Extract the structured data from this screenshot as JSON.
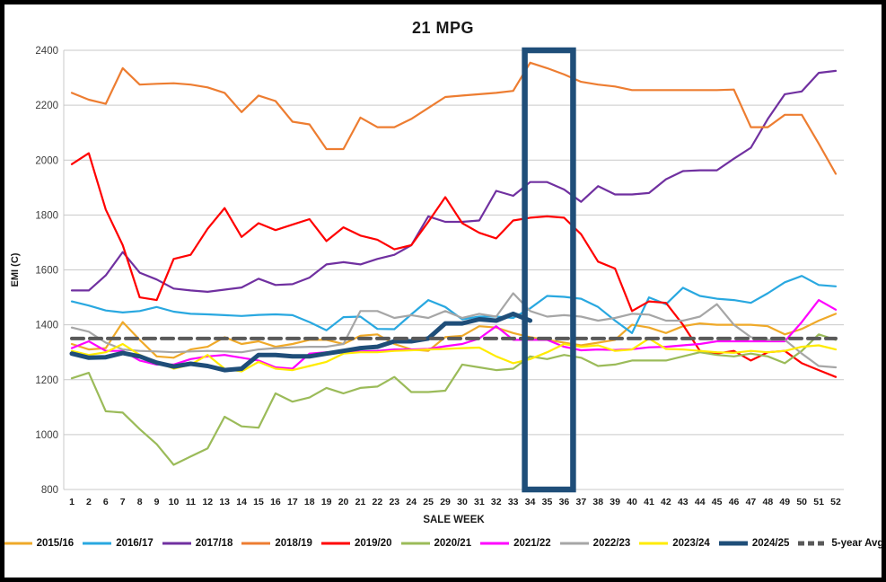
{
  "title": "21 MPG",
  "chart_data": {
    "type": "line",
    "title": "21 MPG",
    "xlabel": "SALE WEEK",
    "ylabel": "EMI (C)",
    "ylim": [
      800,
      2400
    ],
    "y_ticks": [
      800,
      1000,
      1200,
      1400,
      1600,
      1800,
      2000,
      2200,
      2400
    ],
    "grid": true,
    "legend_position": "bottom",
    "highlight_box": {
      "from_week": "34",
      "to_week": "36",
      "color": "#1F4E79"
    },
    "categories": [
      "1",
      "2",
      "6",
      "7",
      "8",
      "9",
      "10",
      "11",
      "12",
      "13",
      "14",
      "15",
      "16",
      "17",
      "18",
      "19",
      "20",
      "21",
      "22",
      "23",
      "24",
      "25",
      "29",
      "30",
      "31",
      "32",
      "33",
      "34",
      "35",
      "36",
      "37",
      "38",
      "39",
      "40",
      "41",
      "42",
      "43",
      "44",
      "45",
      "46",
      "47",
      "48",
      "49",
      "50",
      "51",
      "52"
    ],
    "series": [
      {
        "name": "2015/16",
        "color": "#EFA929",
        "width": 2.2,
        "values": [
          1330,
          1310,
          1315,
          1410,
          1345,
          1285,
          1280,
          1310,
          1320,
          1355,
          1330,
          1340,
          1320,
          1330,
          1345,
          1345,
          1330,
          1360,
          1365,
          1330,
          1310,
          1305,
          1355,
          1360,
          1395,
          1390,
          1370,
          1355,
          1345,
          1335,
          1325,
          1335,
          1345,
          1400,
          1390,
          1370,
          1395,
          1405,
          1400,
          1400,
          1400,
          1395,
          1365,
          1385,
          1415,
          1440
        ]
      },
      {
        "name": "2016/17",
        "color": "#29A8E0",
        "width": 2.2,
        "values": [
          1485,
          1470,
          1452,
          1445,
          1450,
          1465,
          1448,
          1440,
          1438,
          1435,
          1432,
          1436,
          1438,
          1435,
          1410,
          1380,
          1428,
          1430,
          1385,
          1384,
          1438,
          1490,
          1465,
          1420,
          1430,
          1430,
          1425,
          1460,
          1505,
          1502,
          1495,
          1465,
          1415,
          1370,
          1500,
          1475,
          1535,
          1505,
          1495,
          1490,
          1480,
          1515,
          1555,
          1578,
          1545,
          1540
        ]
      },
      {
        "name": "2017/18",
        "color": "#7030A0",
        "width": 2.2,
        "values": [
          1525,
          1525,
          1580,
          1665,
          1590,
          1565,
          1532,
          1525,
          1520,
          1528,
          1536,
          1568,
          1545,
          1548,
          1572,
          1620,
          1628,
          1620,
          1640,
          1655,
          1690,
          1795,
          1775,
          1775,
          1780,
          1888,
          1870,
          1920,
          1920,
          1893,
          1848,
          1905,
          1875,
          1875,
          1880,
          1930,
          1960,
          1963,
          1963,
          2005,
          2045,
          2150,
          2240,
          2250,
          2318,
          2325
        ]
      },
      {
        "name": "2018/19",
        "color": "#ED7D31",
        "width": 2.2,
        "values": [
          2245,
          2220,
          2205,
          2335,
          2275,
          2278,
          2280,
          2275,
          2265,
          2245,
          2175,
          2235,
          2215,
          2140,
          2130,
          2040,
          2040,
          2155,
          2120,
          2120,
          2150,
          2190,
          2230,
          2235,
          2240,
          2245,
          2252,
          2355,
          2335,
          2312,
          2285,
          2275,
          2268,
          2255,
          2255,
          2255,
          2255,
          2255,
          2255,
          2257,
          2120,
          2120,
          2165,
          2165,
          2060,
          1950
        ]
      },
      {
        "name": "2019/20",
        "color": "#FF0000",
        "width": 2.2,
        "values": [
          1985,
          2025,
          1820,
          1690,
          1500,
          1490,
          1640,
          1655,
          1750,
          1825,
          1720,
          1770,
          1745,
          1765,
          1785,
          1705,
          1755,
          1725,
          1710,
          1675,
          1690,
          1775,
          1865,
          1770,
          1735,
          1715,
          1780,
          1790,
          1795,
          1790,
          1730,
          1630,
          1605,
          1450,
          1485,
          1480,
          1400,
          1305,
          1295,
          1305,
          1270,
          1300,
          1305,
          1260,
          1235,
          1210
        ]
      },
      {
        "name": "2020/21",
        "color": "#9BBB59",
        "width": 2.2,
        "values": [
          1205,
          1225,
          1085,
          1080,
          1020,
          965,
          890,
          920,
          950,
          1065,
          1030,
          1025,
          1150,
          1120,
          1135,
          1170,
          1150,
          1170,
          1175,
          1210,
          1155,
          1155,
          1160,
          1255,
          1245,
          1235,
          1240,
          1285,
          1275,
          1290,
          1280,
          1250,
          1255,
          1270,
          1270,
          1270,
          1285,
          1300,
          1290,
          1285,
          1295,
          1285,
          1260,
          1305,
          1365,
          1345
        ]
      },
      {
        "name": "2021/22",
        "color": "#FF00FF",
        "width": 2.2,
        "values": [
          1315,
          1340,
          1305,
          1305,
          1270,
          1255,
          1255,
          1275,
          1285,
          1290,
          1280,
          1270,
          1245,
          1240,
          1295,
          1300,
          1300,
          1303,
          1305,
          1310,
          1310,
          1312,
          1322,
          1330,
          1350,
          1395,
          1345,
          1345,
          1345,
          1320,
          1307,
          1310,
          1308,
          1311,
          1318,
          1320,
          1325,
          1330,
          1340,
          1340,
          1340,
          1340,
          1340,
          1410,
          1490,
          1455
        ]
      },
      {
        "name": "2022/23",
        "color": "#A6A6A6",
        "width": 2.2,
        "values": [
          1390,
          1375,
          1335,
          1310,
          1305,
          1303,
          1300,
          1303,
          1305,
          1303,
          1300,
          1310,
          1315,
          1318,
          1320,
          1320,
          1330,
          1450,
          1450,
          1425,
          1435,
          1425,
          1450,
          1425,
          1440,
          1430,
          1515,
          1450,
          1430,
          1435,
          1430,
          1415,
          1425,
          1440,
          1437,
          1415,
          1415,
          1430,
          1475,
          1400,
          1355,
          1345,
          1345,
          1295,
          1250,
          1245
        ]
      },
      {
        "name": "2023/24",
        "color": "#FFEB00",
        "width": 2.2,
        "values": [
          1305,
          1290,
          1300,
          1330,
          1290,
          1265,
          1240,
          1255,
          1290,
          1240,
          1230,
          1265,
          1240,
          1235,
          1250,
          1265,
          1295,
          1300,
          1300,
          1305,
          1307,
          1310,
          1312,
          1315,
          1317,
          1285,
          1260,
          1275,
          1300,
          1330,
          1320,
          1325,
          1305,
          1310,
          1350,
          1312,
          1310,
          1305,
          1300,
          1298,
          1305,
          1300,
          1305,
          1320,
          1325,
          1310
        ]
      },
      {
        "name": "2024/25",
        "color": "#1F4E79",
        "width": 5,
        "values": [
          1295,
          1280,
          1282,
          1297,
          1285,
          1262,
          1248,
          1258,
          1250,
          1235,
          1240,
          1290,
          1290,
          1285,
          1285,
          1295,
          1305,
          1315,
          1320,
          1340,
          1340,
          1350,
          1405,
          1405,
          1420,
          1415,
          1440,
          1415,
          null,
          null,
          null,
          null,
          null,
          null,
          null,
          null,
          null,
          null,
          null,
          null,
          null,
          null,
          null,
          null,
          null,
          null
        ]
      },
      {
        "name": "5-year Avg",
        "color": "#595959",
        "width": 4,
        "dash": "13 7",
        "values": [
          1350,
          1350,
          1350,
          1350,
          1350,
          1350,
          1350,
          1350,
          1350,
          1350,
          1350,
          1350,
          1350,
          1350,
          1350,
          1350,
          1350,
          1350,
          1350,
          1350,
          1350,
          1350,
          1350,
          1350,
          1350,
          1350,
          1350,
          1350,
          1350,
          1350,
          1350,
          1350,
          1350,
          1350,
          1350,
          1350,
          1350,
          1350,
          1350,
          1350,
          1350,
          1350,
          1350,
          1350,
          1350,
          1350
        ]
      }
    ]
  }
}
